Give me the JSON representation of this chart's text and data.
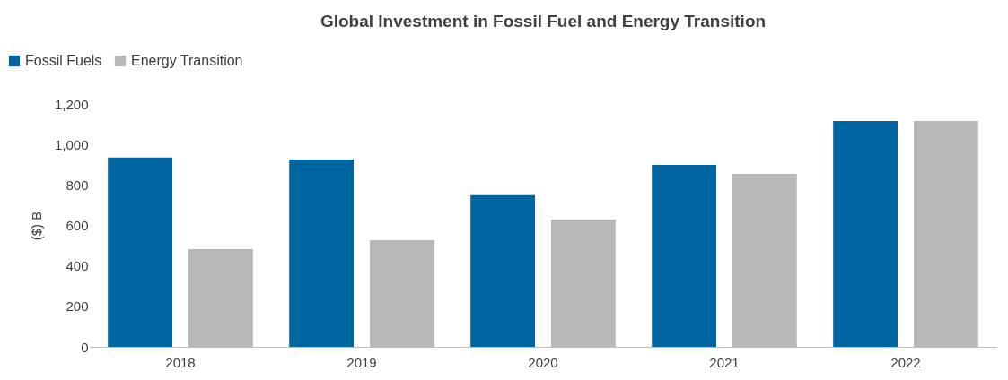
{
  "chart_data": {
    "type": "bar",
    "title": "Global Investment in Fossil Fuel and Energy Transition",
    "ylabel": "($) B",
    "categories": [
      "2018",
      "2019",
      "2020",
      "2021",
      "2022"
    ],
    "series": [
      {
        "name": "Fossil Fuels",
        "color": "#0066a1",
        "values": [
          935,
          926,
          749,
          899,
          1116
        ]
      },
      {
        "name": "Energy Transition",
        "color": "#b8b8b8",
        "values": [
          483,
          527,
          629,
          855,
          1116
        ]
      }
    ],
    "ylim": [
      0,
      1200
    ],
    "yticks": [
      0,
      200,
      400,
      600,
      800,
      {
        "value": 1000,
        "label": "1,000"
      },
      {
        "value": 1200,
        "label": "1,200"
      }
    ],
    "grid": false,
    "legend": "top left"
  }
}
